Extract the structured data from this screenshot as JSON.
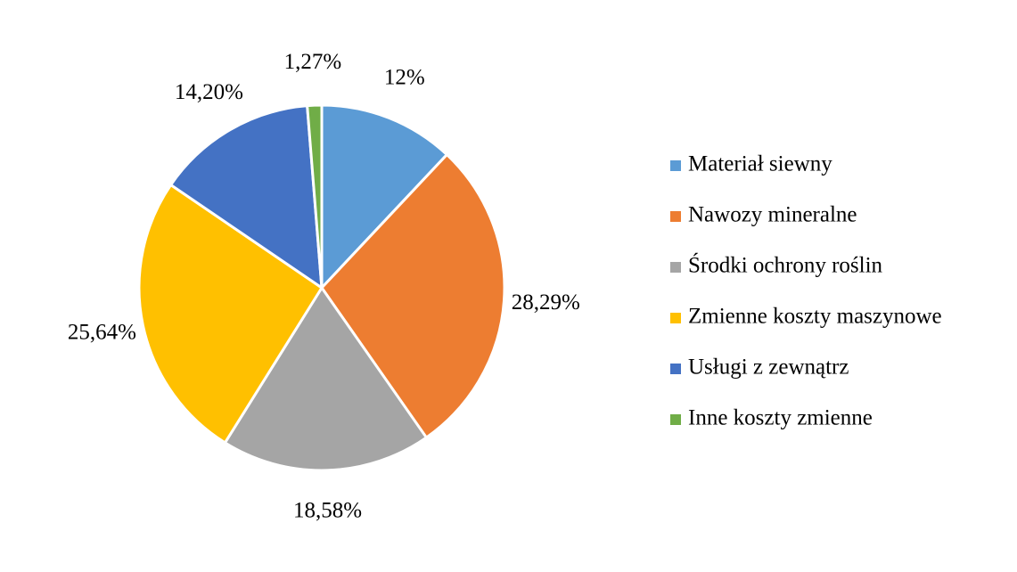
{
  "chart_data": {
    "type": "pie",
    "categories": [
      "Materiał siewny",
      "Nawozy mineralne",
      "Środki ochrony roślin",
      "Zmienne koszty maszynowe",
      "Usługi z zewnątrz",
      "Inne koszty zmienne"
    ],
    "values": [
      12,
      28.29,
      18.58,
      25.64,
      14.2,
      1.27
    ],
    "value_labels": [
      "12%",
      "28,29%",
      "18,58%",
      "25,64%",
      "14,20%",
      "1,27%"
    ],
    "colors": [
      "#5B9BD5",
      "#ED7D31",
      "#A5A5A5",
      "#FFC000",
      "#4472C4",
      "#70AD47"
    ],
    "legend": "right"
  }
}
